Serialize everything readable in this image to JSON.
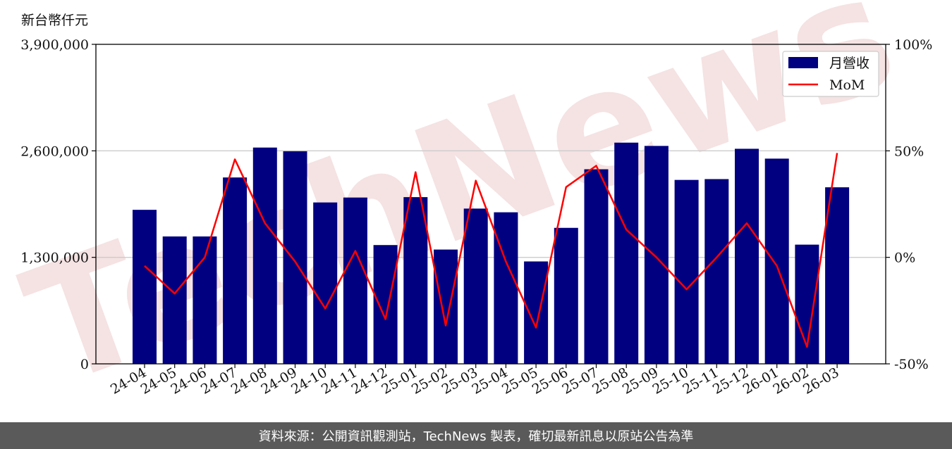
{
  "unit_label": "新台幣仟元",
  "footer": "資料來源：公開資訊觀測站，TechNews 製表，確切最新訊息以原站公告為準",
  "watermark": "TechNews",
  "colors": {
    "bar": "#000080",
    "line": "#ff0000",
    "grid": "#cccccc",
    "footer_bg": "#5a5a5a",
    "watermark": "#f2d6d6"
  },
  "chart_data": {
    "type": "bar",
    "categories": [
      "24-04",
      "24-05",
      "24-06",
      "24-07",
      "24-08",
      "24-09",
      "24-10",
      "24-11",
      "24-12",
      "25-01",
      "25-02",
      "25-03",
      "25-04",
      "25-05",
      "25-06",
      "25-07",
      "25-08",
      "25-09",
      "25-10",
      "25-11",
      "25-12",
      "26-01",
      "26-02",
      "26-03"
    ],
    "series": [
      {
        "name": "月營收",
        "type": "bar",
        "axis": "left",
        "values": [
          1880000,
          1555000,
          1555000,
          2275000,
          2640000,
          2595000,
          1970000,
          2030000,
          1450000,
          2035000,
          1395000,
          1895000,
          1850000,
          1250000,
          1660000,
          2375000,
          2700000,
          2660000,
          2245000,
          2255000,
          2625000,
          2505000,
          1455000,
          2155000
        ]
      },
      {
        "name": "MoM",
        "type": "line",
        "axis": "right",
        "values": [
          -4,
          -17,
          0,
          46,
          16,
          -2,
          -24,
          3,
          -29,
          40,
          -32,
          36,
          -2,
          -33,
          33,
          43,
          13,
          0,
          -15,
          0,
          16,
          -4,
          -42,
          49
        ]
      }
    ],
    "y_left": {
      "ticks": [
        "0",
        "1,300,000",
        "2,600,000",
        "3,900,000"
      ],
      "range": [
        0,
        3900000
      ]
    },
    "y_right": {
      "ticks": [
        "-50%",
        "0%",
        "50%",
        "100%"
      ],
      "range": [
        -50,
        100
      ]
    },
    "grid": "horizontal",
    "legend_position": "top-right"
  }
}
